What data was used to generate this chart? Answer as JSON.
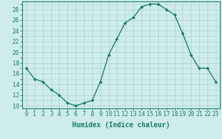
{
  "x": [
    0,
    1,
    2,
    3,
    4,
    5,
    6,
    7,
    8,
    9,
    10,
    11,
    12,
    13,
    14,
    15,
    16,
    17,
    18,
    19,
    20,
    21,
    22,
    23
  ],
  "y": [
    17,
    15,
    14.5,
    13,
    12,
    10.5,
    10,
    10.5,
    11,
    14.5,
    19.5,
    22.5,
    25.5,
    26.5,
    28.5,
    29,
    29,
    28,
    27,
    23.5,
    19.5,
    17,
    17,
    14.5
  ],
  "line_color": "#1a7a6e",
  "marker": "D",
  "marker_size": 2,
  "bg_color": "#ceecea",
  "grid_color": "#aed4d0",
  "xlabel": "Humidex (Indice chaleur)",
  "xlabel_fontsize": 7,
  "ylabel_ticks": [
    10,
    12,
    14,
    16,
    18,
    20,
    22,
    24,
    26,
    28
  ],
  "xlim": [
    -0.5,
    23.5
  ],
  "ylim": [
    9.5,
    29.5
  ],
  "tick_fontsize": 6,
  "line_width": 1.0
}
